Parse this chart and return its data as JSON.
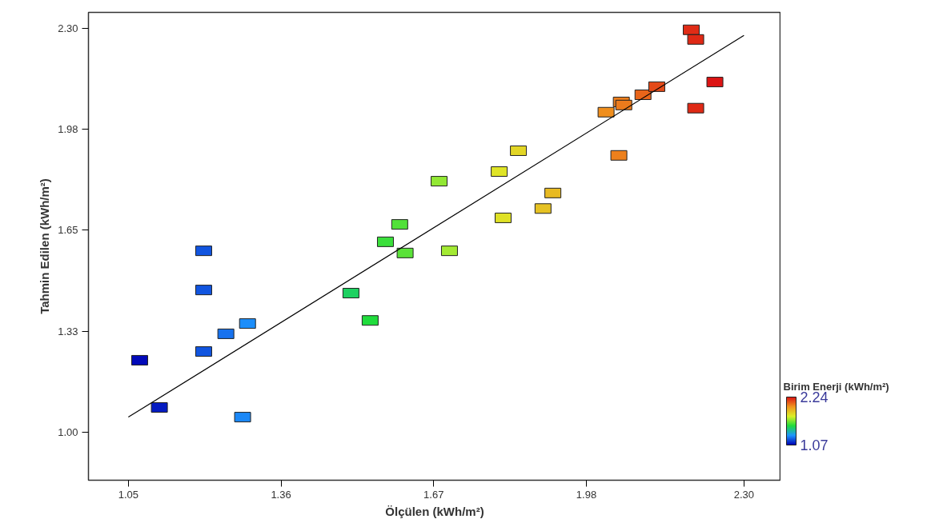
{
  "chart_data": {
    "type": "scatter",
    "xlabel": "Ölçülen (kWh/m²)",
    "ylabel": "Tahmin Edilen (kWh/m²)",
    "clabel": "Birim Enerji (kWh/m²)",
    "xlim": [
      0.969,
      2.375
    ],
    "ylim": [
      0.846,
      2.351
    ],
    "xticks": [
      1.05,
      1.36,
      1.67,
      1.98,
      {
        "value": 2.3,
        "label": "2.30"
      }
    ],
    "yticks": [
      {
        "value": 1.0,
        "label": "1.00"
      },
      {
        "value": 1.325,
        "label": "1.33"
      },
      1.65,
      {
        "value": 1.975,
        "label": "1.98"
      },
      {
        "value": 2.3,
        "label": "2.30"
      }
    ],
    "clim": [
      1.07,
      2.24
    ],
    "cticks": [
      1.07,
      2.24
    ],
    "grid": false,
    "series": [
      {
        "marker": "square",
        "x": [
          1.073,
          1.113,
          1.203,
          1.203,
          1.203,
          1.248,
          1.292,
          1.282,
          1.502,
          1.541,
          1.572,
          1.601,
          1.612,
          1.681,
          1.702,
          1.803,
          1.811,
          1.842,
          1.892,
          1.912,
          2.02,
          2.051,
          2.056,
          2.046,
          2.095,
          2.123,
          2.193,
          2.202,
          2.202,
          2.241
        ],
        "values": [
          1.232,
          1.08,
          1.584,
          1.458,
          1.26,
          1.317,
          1.35,
          1.049,
          1.448,
          1.36,
          1.613,
          1.669,
          1.577,
          1.808,
          1.584,
          1.839,
          1.69,
          1.906,
          1.72,
          1.77,
          2.03,
          2.063,
          2.053,
          1.891,
          2.086,
          2.112,
          2.295,
          2.264,
          2.043,
          2.127
        ],
        "colors": [
          "#020ab9",
          "#051bc1",
          "#1155e0",
          "#1155e0",
          "#1155e0",
          "#1772ee",
          "#1c8efa",
          "#1b88f7",
          "#1ed161",
          "#20dc3c",
          "#3adf3b",
          "#51e139",
          "#5ae239",
          "#92e834",
          "#a3ea33",
          "#dfe427",
          "#dfe126",
          "#e2d525",
          "#e6c223",
          "#e8ba22",
          "#ef8e1d",
          "#ec7d1c",
          "#ec7b1c",
          "#ed801c",
          "#e8651a",
          "#e44a18",
          "#e02c16",
          "#df2915",
          "#df2915",
          "#dc1414"
        ]
      },
      {
        "type": "line",
        "marker": "none",
        "color": "#000000",
        "x": [
          1.05,
          2.3
        ],
        "values": [
          1.049,
          2.277
        ]
      }
    ]
  }
}
